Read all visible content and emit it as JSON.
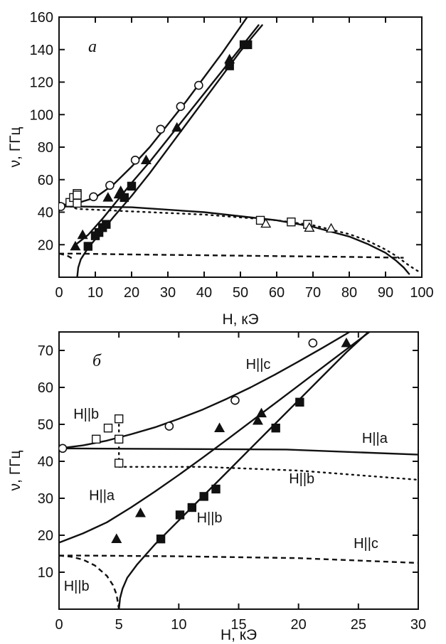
{
  "chart_data": [
    {
      "type": "line",
      "panel_label": "а",
      "xlabel": "H,  кЭ",
      "ylabel": "ν, ГГц",
      "xlim": [
        0,
        100
      ],
      "ylim": [
        0,
        160
      ],
      "xticks": [
        0,
        10,
        20,
        30,
        40,
        50,
        60,
        70,
        80,
        90,
        100
      ],
      "yticks": [
        20,
        40,
        60,
        80,
        100,
        120,
        140,
        160
      ],
      "grid": false,
      "annotations": [],
      "series": [
        {
          "style": "solid",
          "x": [
            0,
            5,
            10,
            15,
            20,
            25,
            30,
            35,
            40,
            45,
            50,
            55
          ],
          "y": [
            44,
            45.5,
            49,
            57,
            68,
            80,
            94,
            108,
            123,
            138,
            154,
            170
          ]
        },
        {
          "style": "solid",
          "x": [
            4,
            8,
            12,
            16,
            20,
            25,
            30,
            35,
            40,
            45,
            50,
            55
          ],
          "y": [
            19,
            26,
            36,
            47,
            58,
            71,
            85,
            99,
            113,
            127,
            141,
            155
          ]
        },
        {
          "style": "solid",
          "x": [
            5,
            5.3,
            6,
            8,
            11,
            15,
            20,
            25,
            30,
            35,
            40,
            45,
            50,
            56
          ],
          "y": [
            0,
            6,
            11,
            18,
            26,
            37,
            50,
            64,
            79,
            94,
            109,
            124,
            139,
            155
          ]
        },
        {
          "style": "solid",
          "x": [
            0,
            5,
            20,
            40,
            60,
            70,
            80,
            85,
            90,
            93,
            95,
            96.5
          ],
          "y": [
            43.5,
            43.5,
            43,
            40,
            35,
            31,
            25,
            20.5,
            15,
            10,
            6,
            2
          ]
        },
        {
          "style": "dotted",
          "x": [
            0,
            5,
            20,
            40,
            60,
            70,
            80,
            85,
            90,
            93,
            96,
            98,
            99.5
          ],
          "y": [
            46,
            42,
            40.5,
            38.5,
            35,
            32,
            26.5,
            22.5,
            17,
            13,
            8,
            5,
            3
          ]
        },
        {
          "style": "dashed",
          "x": [
            0,
            5,
            20,
            40,
            60,
            80,
            95
          ],
          "y": [
            14.5,
            14.5,
            14,
            13.5,
            13,
            12.5,
            12
          ]
        },
        {
          "style": "dashed",
          "x": [
            0,
            1,
            2.5,
            4
          ],
          "y": [
            14.5,
            14,
            13,
            11
          ]
        }
      ],
      "markers": [
        {
          "symbol": "open-circle",
          "x": [
            0.5,
            9.5,
            14,
            21,
            28,
            33.5,
            38.5
          ],
          "y": [
            43.5,
            49.5,
            56.5,
            72,
            91,
            105,
            118
          ]
        },
        {
          "symbol": "filled-triangle",
          "x": [
            4.5,
            6.5,
            13.5,
            16.5,
            17,
            24,
            32.5,
            47
          ],
          "y": [
            19,
            26,
            49,
            51,
            53,
            72,
            92,
            134
          ]
        },
        {
          "symbol": "filled-square",
          "x": [
            8,
            10,
            11,
            12,
            13,
            18,
            20,
            47,
            51,
            52
          ],
          "y": [
            19,
            25.5,
            27.5,
            30.5,
            32.5,
            49,
            56,
            130,
            143,
            143
          ]
        },
        {
          "symbol": "open-square",
          "x": [
            3,
            4,
            5,
            5,
            5,
            55.5,
            64,
            68.5
          ],
          "y": [
            46,
            49,
            51.5,
            50.5,
            45.5,
            35,
            34,
            32.5
          ]
        },
        {
          "symbol": "open-triangle",
          "x": [
            57,
            69,
            75
          ],
          "y": [
            33,
            30.5,
            30
          ]
        }
      ]
    },
    {
      "type": "line",
      "panel_label": "б",
      "xlabel": "H,  кЭ",
      "ylabel": "ν, ГГц",
      "xlim": [
        0,
        30
      ],
      "ylim": [
        0,
        75
      ],
      "xticks": [
        0,
        5,
        10,
        15,
        20,
        25,
        30
      ],
      "yticks": [
        10,
        20,
        30,
        40,
        50,
        60,
        70
      ],
      "grid": false,
      "annotations": [
        {
          "text": "H||c",
          "x": 15.6,
          "y": 65
        },
        {
          "text": "H||b",
          "x": 1.2,
          "y": 51.5
        },
        {
          "text": "H||a",
          "x": 25.3,
          "y": 45
        },
        {
          "text": "H||b",
          "x": 19.2,
          "y": 34
        },
        {
          "text": "H||a",
          "x": 2.5,
          "y": 29.5
        },
        {
          "text": "H||b",
          "x": 11.5,
          "y": 23.5
        },
        {
          "text": "H||c",
          "x": 24.6,
          "y": 16.5
        },
        {
          "text": "H||b",
          "x": 0.4,
          "y": 5
        }
      ],
      "series": [
        {
          "style": "solid",
          "x": [
            0,
            2,
            4,
            6,
            8,
            10,
            12,
            14,
            16,
            18,
            20,
            22,
            24,
            26
          ],
          "y": [
            43.5,
            44.3,
            45.6,
            47.3,
            49.2,
            51.5,
            54.0,
            56.9,
            60.0,
            63.4,
            67.0,
            70.7,
            74.5,
            78.5
          ]
        },
        {
          "style": "solid",
          "x": [
            0,
            19,
            30
          ],
          "y": [
            43.5,
            43.2,
            41.8
          ]
        },
        {
          "style": "solid",
          "x": [
            0,
            2,
            4,
            6,
            8,
            10,
            12,
            14,
            16,
            18,
            20,
            22,
            24,
            26
          ],
          "y": [
            18,
            20.5,
            23.5,
            27.5,
            31.8,
            36.3,
            41.0,
            45.8,
            50.7,
            55.6,
            60.5,
            65.4,
            70.3,
            75.2
          ]
        },
        {
          "style": "solid",
          "x": [
            5,
            5.1,
            5.3,
            5.7,
            6.5,
            8,
            10,
            12,
            14,
            16,
            18,
            20,
            22,
            24,
            26,
            28
          ],
          "y": [
            0,
            3,
            5.5,
            8.5,
            12,
            17.5,
            24,
            30.5,
            37,
            43.5,
            50,
            56.5,
            63,
            69.5,
            75.5,
            82
          ]
        },
        {
          "style": "dashed",
          "x": [
            0,
            2,
            10,
            20,
            30
          ],
          "y": [
            14.5,
            14.5,
            14.3,
            13.8,
            12.5
          ]
        },
        {
          "style": "dashed",
          "x": [
            0,
            1,
            2,
            3,
            4,
            4.5,
            4.8,
            5
          ],
          "y": [
            14.5,
            14.2,
            13.4,
            11.8,
            9,
            6.5,
            4,
            0
          ]
        },
        {
          "style": "dotted",
          "x": [
            5,
            5
          ],
          "y": [
            51.5,
            39.5
          ]
        },
        {
          "style": "dotted",
          "x": [
            5,
            12,
            20,
            30
          ],
          "y": [
            38.5,
            38.5,
            37.5,
            35
          ]
        }
      ],
      "markers": [
        {
          "symbol": "open-circle",
          "x": [
            0.3,
            9.2,
            14.7,
            21.2
          ],
          "y": [
            43.5,
            49.5,
            56.5,
            72
          ]
        },
        {
          "symbol": "filled-triangle",
          "x": [
            4.8,
            6.8,
            13.4,
            16.6,
            16.9,
            24
          ],
          "y": [
            19,
            26,
            49,
            51,
            53,
            72
          ]
        },
        {
          "symbol": "filled-square",
          "x": [
            8.5,
            10.1,
            11.1,
            12.1,
            13.1,
            18.1,
            20.1
          ],
          "y": [
            19,
            25.5,
            27.5,
            30.5,
            32.5,
            49,
            56
          ]
        },
        {
          "symbol": "open-square",
          "x": [
            3.1,
            4.1,
            5,
            5,
            5
          ],
          "y": [
            46,
            49,
            51.5,
            46,
            39.5
          ]
        }
      ]
    }
  ]
}
